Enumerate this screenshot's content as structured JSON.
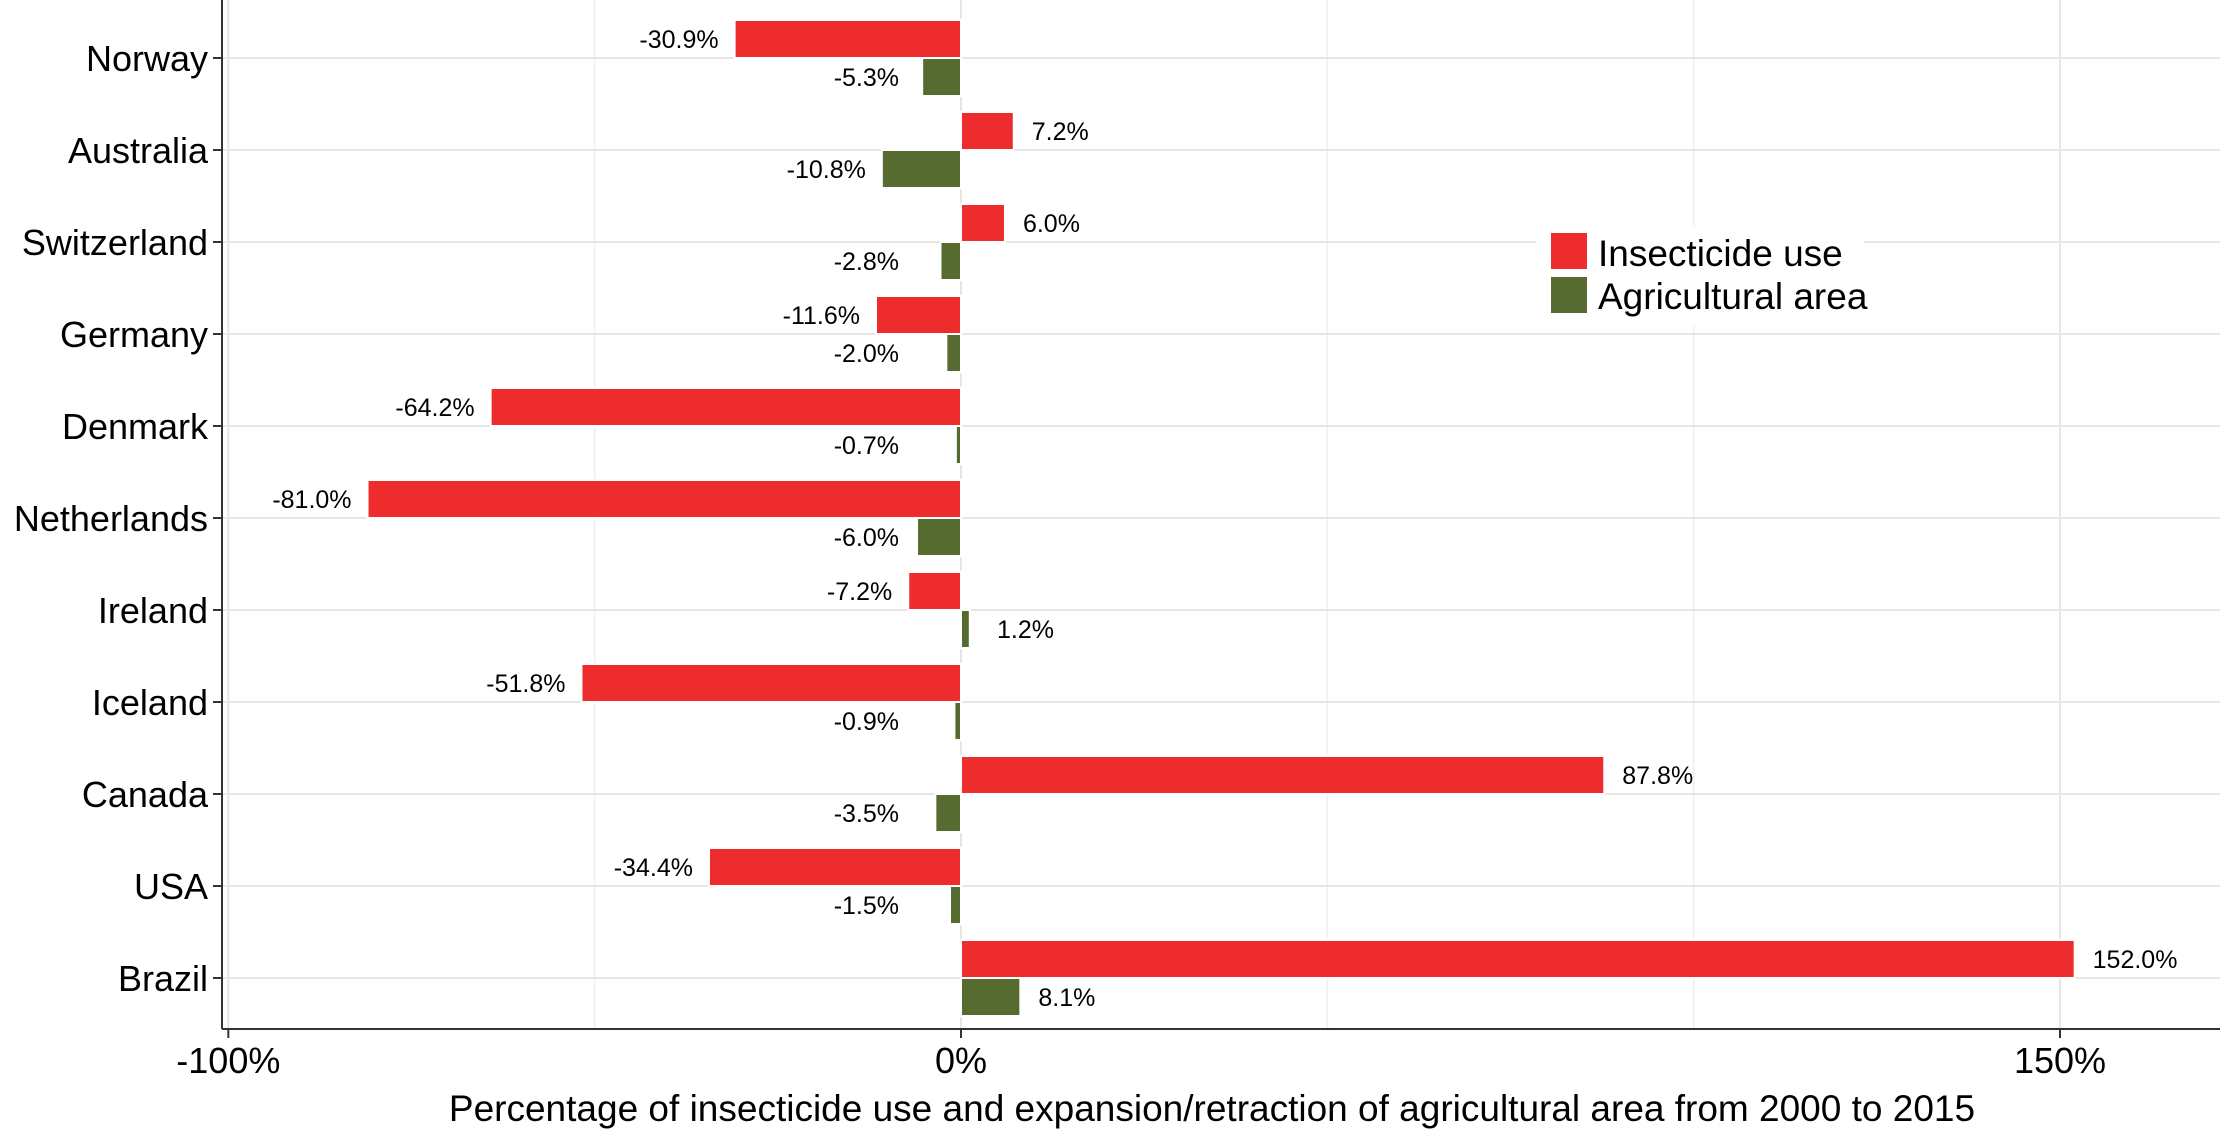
{
  "chart_data": {
    "type": "bar",
    "orientation": "horizontal",
    "categories": [
      "Norway",
      "Australia",
      "Switzerland",
      "Germany",
      "Denmark",
      "Netherlands",
      "Ireland",
      "Iceland",
      "Canada",
      "USA",
      "Brazil"
    ],
    "series": [
      {
        "name": "Insecticide use",
        "color": "#ee2b2d",
        "values": [
          -30.9,
          7.2,
          6.0,
          -11.6,
          -64.2,
          -81.0,
          -7.2,
          -51.8,
          87.8,
          -34.4,
          152.0
        ],
        "labels": [
          "-30.9%",
          "7.2%",
          "6.0%",
          "-11.6%",
          "-64.2%",
          "-81.0%",
          "-7.2%",
          "-51.8%",
          "87.8%",
          "-34.4%",
          "152.0%"
        ]
      },
      {
        "name": "Agricultural area",
        "color": "#556b2f",
        "values": [
          -5.3,
          -10.8,
          -2.8,
          -2.0,
          -0.7,
          -6.0,
          1.2,
          -0.9,
          -3.5,
          -1.5,
          8.1
        ],
        "labels": [
          "-5.3%",
          "-10.8%",
          "-2.8%",
          "-2.0%",
          "-0.7%",
          "-6.0%",
          "1.2%",
          "-0.9%",
          "-3.5%",
          "-1.5%",
          "8.1%"
        ]
      }
    ],
    "xlim": [
      -100,
      160
    ],
    "xticks": [
      -100,
      0,
      150
    ],
    "xtick_labels": [
      "-100%",
      "0%",
      "150%"
    ],
    "xlabel": "Percentage of insecticide use and expansion/retraction of agricultural area from 2000 to 2015",
    "ylabel": "",
    "title": "",
    "grid": true,
    "legend_position": "top-right"
  }
}
